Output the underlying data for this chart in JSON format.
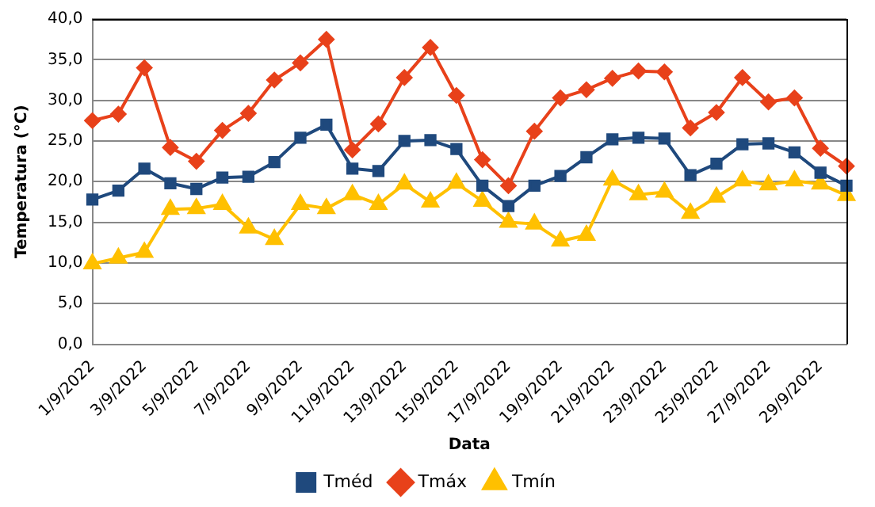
{
  "chart_data": {
    "type": "line",
    "xlabel": "Data",
    "ylabel": "Temperatura (°C)",
    "categories": [
      "1/9/2022",
      null,
      "3/9/2022",
      null,
      "5/9/2022",
      null,
      "7/9/2022",
      null,
      "9/9/2022",
      null,
      "11/9/2022",
      null,
      "13/9/2022",
      null,
      "15/9/2022",
      null,
      "17/9/2022",
      null,
      "19/9/2022",
      null,
      "21/9/2022",
      null,
      "23/9/2022",
      null,
      "25/9/2022",
      null,
      "27/9/2022",
      null,
      "29/9/2022",
      null
    ],
    "series": [
      {
        "name": "Tméd",
        "color": "#1f497d",
        "marker": "square",
        "values": [
          17.8,
          18.9,
          21.6,
          19.8,
          19.1,
          20.5,
          20.6,
          22.4,
          25.4,
          27.0,
          21.6,
          21.3,
          25.0,
          25.1,
          24.0,
          19.5,
          17.0,
          19.5,
          20.7,
          23.0,
          25.2,
          25.4,
          25.3,
          20.8,
          22.2,
          24.6,
          24.7,
          23.6,
          21.1,
          19.5
        ]
      },
      {
        "name": "Tmáx",
        "color": "#e8411a",
        "marker": "diamond",
        "values": [
          27.5,
          28.3,
          34.0,
          24.2,
          22.5,
          26.3,
          28.4,
          32.5,
          34.6,
          37.5,
          23.9,
          27.1,
          32.8,
          36.5,
          30.6,
          22.7,
          19.5,
          26.2,
          30.3,
          31.3,
          32.7,
          33.6,
          33.5,
          26.6,
          28.5,
          32.8,
          29.8,
          30.3,
          24.1,
          21.9
        ]
      },
      {
        "name": "Tmín",
        "color": "#ffc000",
        "marker": "triangle",
        "values": [
          9.9,
          10.6,
          11.3,
          16.6,
          16.7,
          17.2,
          14.3,
          12.9,
          17.2,
          16.7,
          18.4,
          17.2,
          19.7,
          17.5,
          19.8,
          17.6,
          15.0,
          14.8,
          12.7,
          13.4,
          20.2,
          18.4,
          18.7,
          16.1,
          18.1,
          20.1,
          19.6,
          20.1,
          19.7,
          18.3
        ]
      }
    ],
    "ylim": [
      0,
      40
    ],
    "yticks": [
      {
        "value": 0,
        "label": "0,0"
      },
      {
        "value": 5,
        "label": "5,0"
      },
      {
        "value": 10,
        "label": "10,0"
      },
      {
        "value": 15,
        "label": "15,0"
      },
      {
        "value": 20,
        "label": "20,0"
      },
      {
        "value": 25,
        "label": "25,0"
      },
      {
        "value": 30,
        "label": "30,0"
      },
      {
        "value": 35,
        "label": "35,0"
      },
      {
        "value": 40,
        "label": "40,0"
      }
    ],
    "grid": "y",
    "legend": "bottom",
    "line_style": "solid"
  }
}
